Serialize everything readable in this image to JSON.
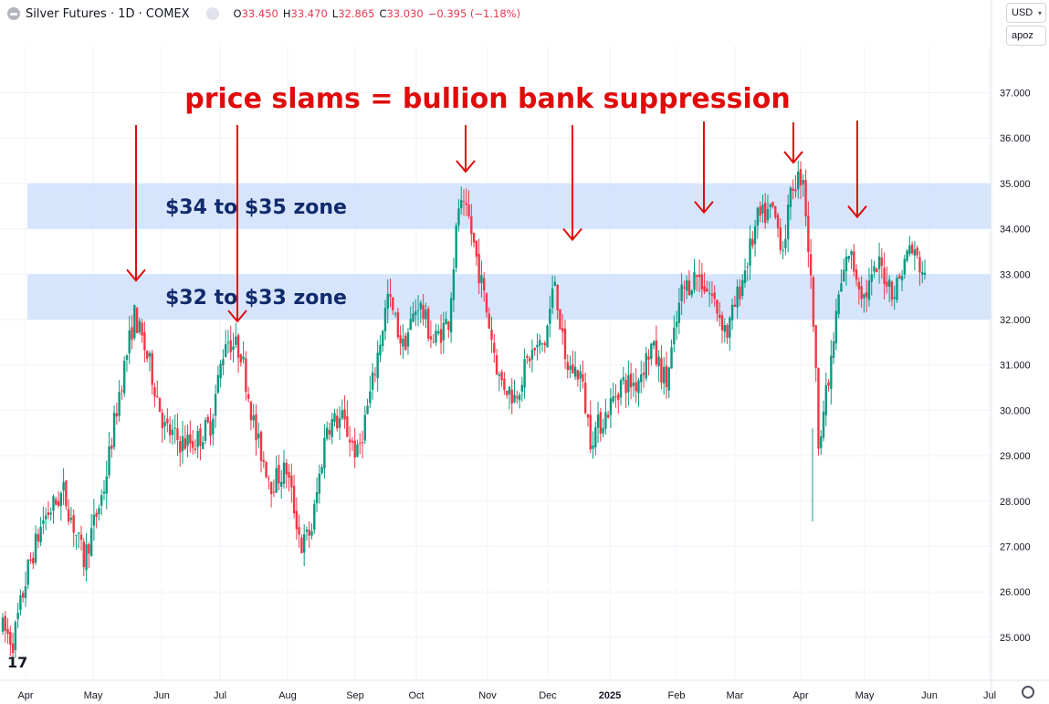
{
  "header": {
    "title": "Silver Futures · 1D · COMEX",
    "ohlc": [
      {
        "k": "O",
        "v": "33.450"
      },
      {
        "k": "H",
        "v": "33.470"
      },
      {
        "k": "L",
        "v": "32.865"
      },
      {
        "k": "C",
        "v": "33.030"
      },
      {
        "k": "",
        "v": "−0.395 (−1.18%)"
      }
    ],
    "currency": "USD",
    "scale_mode": "apoz"
  },
  "colors": {
    "up": "#089981",
    "down": "#f23645",
    "zone": "#cfe0fb",
    "annotation": "#e00b0b",
    "zone_text": "#102a6b"
  },
  "icons": [
    "symbol-logo-icon",
    "visibility-eye-icon",
    "settings-gear-icon",
    "tradingview-logo-icon"
  ],
  "chart_data": {
    "type": "candlestick",
    "ylim": [
      24.6,
      37.9
    ],
    "yticks": [
      "25.000",
      "26.000",
      "27.000",
      "28.000",
      "29.000",
      "30.000",
      "31.000",
      "32.000",
      "33.000",
      "34.000",
      "35.000",
      "36.000",
      "37.000"
    ],
    "xlabels": [
      "Apr",
      "May",
      "Jun",
      "Jul",
      "Aug",
      "Sep",
      "Oct",
      "Nov",
      "Dec",
      "2025",
      "Feb",
      "Mar",
      "Apr",
      "May",
      "Jun",
      "Jul"
    ],
    "title": "price slams = bullion bank suppression",
    "zones": [
      {
        "label": "$34 to $35 zone",
        "low": 34,
        "high": 35
      },
      {
        "label": "$32 to $33 zone",
        "low": 32,
        "high": 33
      }
    ],
    "arrow_targets": [
      32.9,
      32.0,
      35.3,
      33.8,
      34.4,
      35.5,
      34.3
    ],
    "anchors": [
      [
        0,
        25.2
      ],
      [
        4,
        24.9
      ],
      [
        10,
        26.5
      ],
      [
        16,
        27.6
      ],
      [
        24,
        28.2
      ],
      [
        32,
        26.7
      ],
      [
        40,
        28.3
      ],
      [
        46,
        30.4
      ],
      [
        52,
        32.1
      ],
      [
        58,
        31.0
      ],
      [
        64,
        29.6
      ],
      [
        70,
        29.3
      ],
      [
        76,
        29.3
      ],
      [
        82,
        29.7
      ],
      [
        88,
        31.6
      ],
      [
        94,
        31.3
      ],
      [
        100,
        29.4
      ],
      [
        106,
        28.4
      ],
      [
        112,
        28.7
      ],
      [
        118,
        27.0
      ],
      [
        122,
        27.4
      ],
      [
        128,
        29.7
      ],
      [
        134,
        29.8
      ],
      [
        140,
        29.0
      ],
      [
        146,
        30.6
      ],
      [
        152,
        32.5
      ],
      [
        158,
        31.4
      ],
      [
        164,
        32.4
      ],
      [
        170,
        31.5
      ],
      [
        176,
        32.0
      ],
      [
        180,
        34.5
      ],
      [
        184,
        34.2
      ],
      [
        190,
        32.5
      ],
      [
        196,
        30.7
      ],
      [
        202,
        30.3
      ],
      [
        208,
        31.2
      ],
      [
        214,
        31.5
      ],
      [
        218,
        32.9
      ],
      [
        222,
        31.0
      ],
      [
        228,
        30.8
      ],
      [
        232,
        29.4
      ],
      [
        238,
        29.9
      ],
      [
        244,
        30.6
      ],
      [
        250,
        30.6
      ],
      [
        256,
        31.4
      ],
      [
        262,
        30.6
      ],
      [
        268,
        32.6
      ],
      [
        274,
        33.0
      ],
      [
        280,
        32.5
      ],
      [
        286,
        31.7
      ],
      [
        292,
        32.9
      ],
      [
        298,
        34.2
      ],
      [
        304,
        34.4
      ],
      [
        308,
        33.6
      ],
      [
        312,
        35.0
      ],
      [
        316,
        35.2
      ],
      [
        320,
        32.0
      ],
      [
        322,
        29.4
      ],
      [
        326,
        30.6
      ],
      [
        330,
        32.5
      ],
      [
        334,
        33.5
      ],
      [
        340,
        32.5
      ],
      [
        346,
        33.2
      ],
      [
        352,
        32.6
      ],
      [
        358,
        33.6
      ],
      [
        364,
        33.0
      ]
    ],
    "last_close": 33.03
  }
}
